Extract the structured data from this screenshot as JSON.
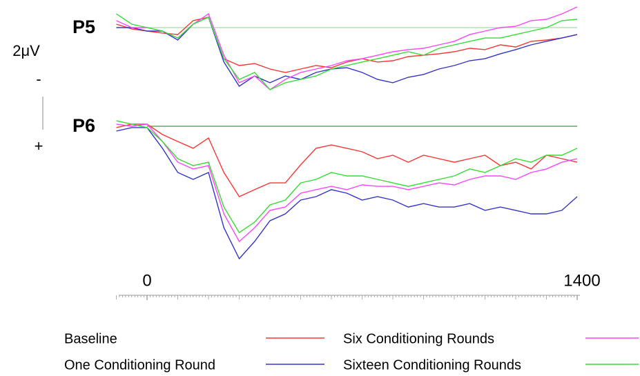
{
  "chart_data": {
    "type": "line",
    "x": [
      -100,
      -50,
      0,
      50,
      100,
      150,
      200,
      250,
      300,
      350,
      400,
      450,
      500,
      550,
      600,
      650,
      700,
      750,
      800,
      850,
      900,
      950,
      1000,
      1050,
      1100,
      1150,
      1200,
      1250,
      1300,
      1350,
      1400
    ],
    "xlim": [
      -100,
      1400
    ],
    "xticks": [
      0,
      1400
    ],
    "xminor_step": 10,
    "y_inverted": true,
    "scale_bar": {
      "label": "2μV",
      "value": 2,
      "top_label": "-",
      "bottom_label": "+"
    },
    "series": [
      {
        "name": "Baseline",
        "color": "#ff3333"
      },
      {
        "name": "One Conditioning Round",
        "color": "#3333cc"
      },
      {
        "name": "Six Conditioning Rounds",
        "color": "#ff44ff"
      },
      {
        "name": "Sixteen Conditioning Rounds",
        "color": "#33dd33"
      }
    ],
    "panels": [
      {
        "title": "P5",
        "ylim": [
          -1.5,
          4.5
        ],
        "zero_color": "#a8dca8",
        "values": [
          [
            -0.21,
            0.08,
            0.21,
            0.33,
            0.42,
            -0.42,
            -0.63,
            1.88,
            2.29,
            2.17,
            2.5,
            2.71,
            2.5,
            2.29,
            2.42,
            2.08,
            1.88,
            2.08,
            2.0,
            1.75,
            1.67,
            1.58,
            1.46,
            1.25,
            1.33,
            1.04,
            1.17,
            0.83,
            0.75,
            0.63,
            0.42
          ],
          [
            0,
            0,
            0.21,
            0.21,
            0.75,
            -0.21,
            -0.63,
            2.08,
            3.54,
            2.92,
            3.33,
            2.92,
            3.13,
            2.71,
            2.5,
            2.42,
            2.71,
            3.13,
            3.33,
            3.0,
            2.83,
            2.5,
            2.29,
            2.0,
            1.88,
            1.58,
            1.33,
            1.04,
            0.83,
            0.63,
            0.42
          ],
          [
            -0.42,
            0,
            0,
            0.21,
            0.63,
            -0.21,
            -0.83,
            1.67,
            3.33,
            2.92,
            3.75,
            3.13,
            2.71,
            2.5,
            2.29,
            2.0,
            1.88,
            1.67,
            1.46,
            1.33,
            1.25,
            1.04,
            0.83,
            0.42,
            0.21,
            0,
            -0.08,
            -0.42,
            -0.5,
            -0.83,
            -1.25
          ],
          [
            -0.83,
            -0.21,
            0,
            0.21,
            0.63,
            -0.21,
            -0.63,
            1.88,
            3.13,
            2.71,
            3.75,
            3.33,
            3.13,
            2.92,
            2.5,
            2.29,
            2.08,
            1.88,
            1.67,
            1.46,
            1.67,
            1.25,
            1.04,
            0.83,
            0.63,
            0.63,
            0.42,
            0.21,
            0,
            -0.42,
            -0.5
          ]
        ]
      },
      {
        "title": "P6",
        "ylim": [
          -1,
          9
        ],
        "zero_color": "#3a9a3a",
        "values": [
          [
            0.08,
            -0.13,
            -0.13,
            0.5,
            0.92,
            1.33,
            0.71,
            2.79,
            4.25,
            3.83,
            3.42,
            3.42,
            2.33,
            1.33,
            1.13,
            1.33,
            1.54,
            1.96,
            1.75,
            2.17,
            1.75,
            1.96,
            2.17,
            1.96,
            1.75,
            2.38,
            2.17,
            2.58,
            1.75,
            1.96,
            2.17
          ],
          [
            0.29,
            0.08,
            0.08,
            1.33,
            2.79,
            3.21,
            2.79,
            6.13,
            8.0,
            6.96,
            5.71,
            5.29,
            4.46,
            4.25,
            3.83,
            4.04,
            4.46,
            4.25,
            4.46,
            4.88,
            4.67,
            4.88,
            4.88,
            4.67,
            5.08,
            4.88,
            5.08,
            5.29,
            5.29,
            5.08,
            4.25
          ],
          [
            -0.13,
            0,
            -0.13,
            0.92,
            2.17,
            2.58,
            2.38,
            5.29,
            6.96,
            6.13,
            5.08,
            4.88,
            4.04,
            3.83,
            3.63,
            3.83,
            3.54,
            3.63,
            3.63,
            3.83,
            3.63,
            3.42,
            3.54,
            3.21,
            3.0,
            3.0,
            3.21,
            2.79,
            2.58,
            2.17,
            1.96
          ],
          [
            -0.33,
            -0.13,
            0.08,
            0.92,
            1.96,
            2.38,
            2.17,
            4.88,
            6.42,
            5.79,
            4.75,
            4.46,
            3.42,
            3.21,
            2.79,
            3.0,
            3.0,
            3.21,
            3.42,
            3.63,
            3.42,
            3.21,
            3.0,
            2.58,
            2.79,
            2.38,
            1.96,
            2.17,
            1.75,
            1.75,
            1.33
          ]
        ]
      }
    ]
  }
}
